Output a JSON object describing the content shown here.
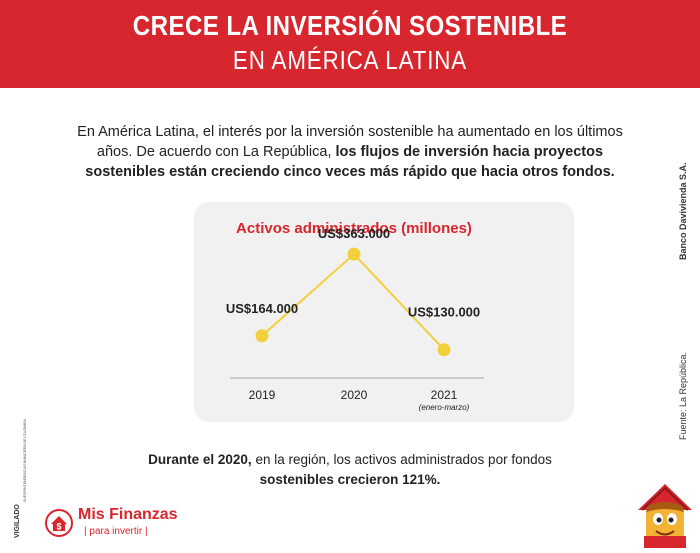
{
  "header": {
    "title_line1": "CRECE LA INVERSIÓN SOSTENIBLE",
    "title_line2": "EN AMÉRICA LATINA"
  },
  "intro": {
    "part1": "En América Latina, el interés por la inversión sostenible ha aumentado en los últimos años. De acuerdo con La República, ",
    "bold": "los flujos de inversión hacia proyectos sostenibles están creciendo cinco veces más rápido que hacia otros fondos."
  },
  "side": {
    "bank": "Banco Davivienda S.A.",
    "source": "Fuente:   La República."
  },
  "chart_data": {
    "type": "line",
    "title": "Activos administrados (millones)",
    "categories": [
      "2019",
      "2020",
      "2021"
    ],
    "category_notes": [
      "",
      "",
      "(enero-marzo)"
    ],
    "values": [
      164000,
      363000,
      130000
    ],
    "value_labels": [
      "US$164.000",
      "US$363.000",
      "US$130.000"
    ],
    "ylim": [
      0,
      400000
    ],
    "grid": false,
    "colors": {
      "line": "#f2d03b",
      "marker": "#f2d03b",
      "title": "#d8262e"
    }
  },
  "outro": {
    "bold1": "Durante el 2020,",
    "part1": " en la región, los activos administrados por fondos ",
    "bold2": "sostenibles crecieron 121%."
  },
  "footer": {
    "vigilado": "VIGILADO",
    "vigilado_small": "SUPERINTENDENCIA FINANCIERA DE COLOMBIA",
    "logo_name": "Mis Finanzas",
    "logo_tagline": "| para invertir |",
    "logo_icon": "house-dollar-icon",
    "mascot_icon": "house-mascot-icon"
  },
  "colors": {
    "brand_red": "#d8262e",
    "card_bg": "#f1f1f1"
  }
}
